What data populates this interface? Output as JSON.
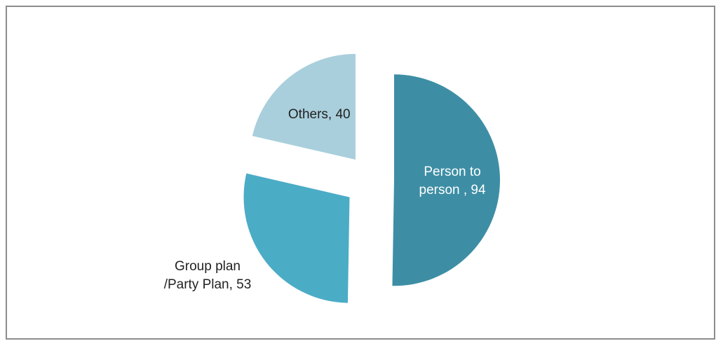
{
  "chart_data": {
    "type": "pie",
    "title": "",
    "exploded": true,
    "slices": [
      {
        "label_lines": [
          "Person to",
          "person , 94"
        ],
        "value": 94,
        "color": "#3d8ea5",
        "label_color": "#ffffff",
        "label_position": "inside"
      },
      {
        "label_lines": [
          "Group plan",
          "/Party Plan, 53"
        ],
        "value": 53,
        "color": "#4bacc6",
        "label_color": "#222222",
        "label_position": "outside"
      },
      {
        "label_lines": [
          "Others, 40"
        ],
        "value": 40,
        "color": "#a9cfdc",
        "label_color": "#222222",
        "label_position": "inside"
      }
    ]
  }
}
